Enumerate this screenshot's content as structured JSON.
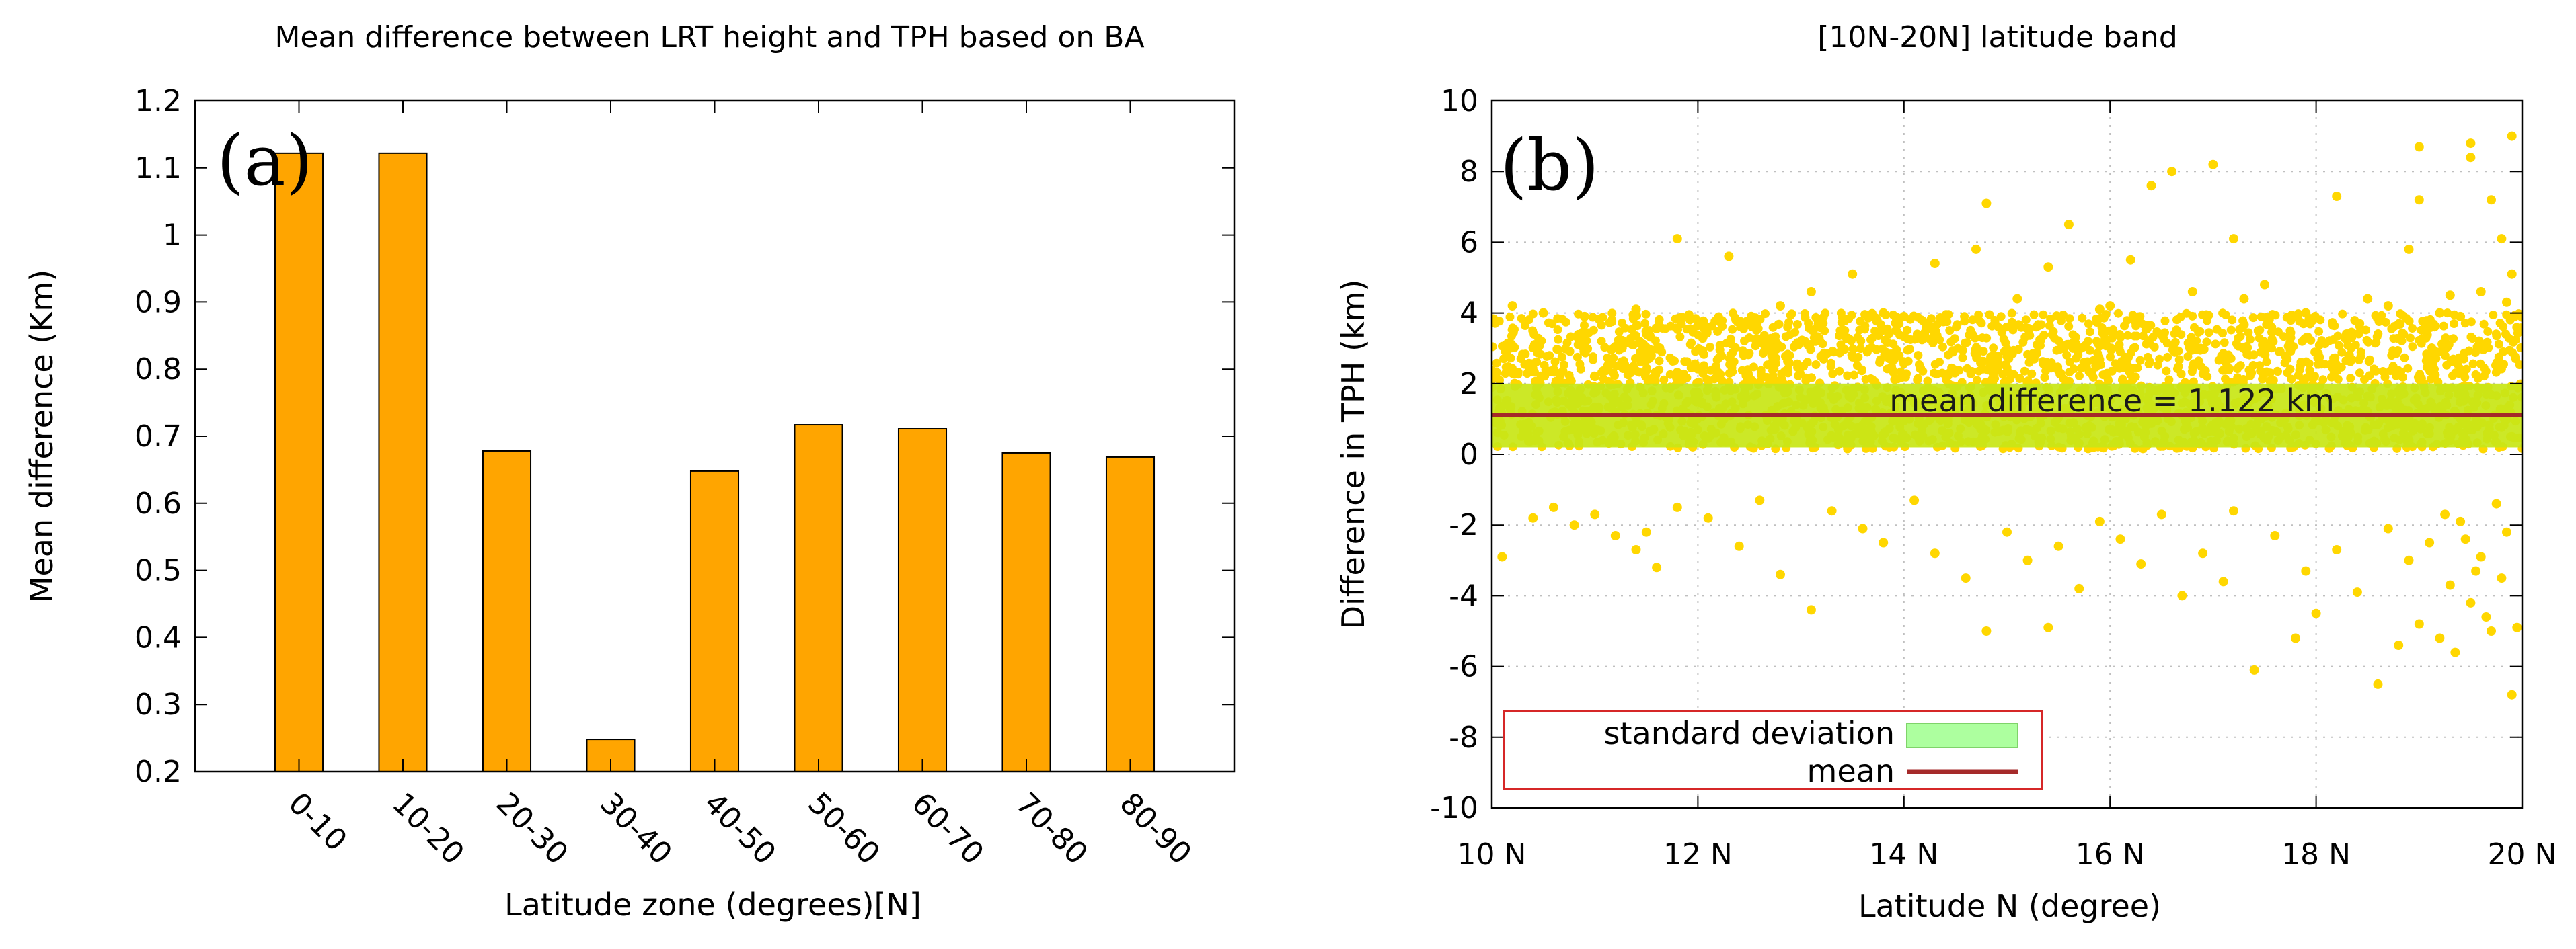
{
  "chart_data": [
    {
      "type": "bar",
      "panel_label": "(a)",
      "title": "Mean difference between LRT height and TPH based on BA",
      "xlabel": "Latitude zone (degrees)[N]",
      "ylabel": "Mean difference (Km)",
      "categories": [
        "0-10",
        "10-20",
        "20-30",
        "30-40",
        "40-50",
        "50-60",
        "60-70",
        "70-80",
        "80-90"
      ],
      "values": [
        1.122,
        1.122,
        0.678,
        0.248,
        0.648,
        0.717,
        0.711,
        0.675,
        0.669
      ],
      "ylim": [
        0.2,
        1.2
      ],
      "yticks": [
        "0.2",
        "0.3",
        "0.4",
        "0.5",
        "0.6",
        "0.7",
        "0.8",
        "0.9",
        "1",
        "1.1",
        "1.2"
      ],
      "grid": false,
      "bar_color": "#ffa500"
    },
    {
      "type": "scatter",
      "panel_label": "(b)",
      "title": "[10N-20N] latitude band",
      "xlabel": "Latitude N (degree)",
      "ylabel": "Difference in TPH (km)",
      "xlim": [
        10,
        20
      ],
      "ylim": [
        -10,
        10
      ],
      "xticks": [
        "10 N",
        "12 N",
        "14 N",
        "16 N",
        "18 N",
        "20 N"
      ],
      "yticks": [
        "-10",
        "-8",
        "-6",
        "-4",
        "-2",
        "0",
        "2",
        "4",
        "6",
        "8",
        "10"
      ],
      "grid": true,
      "mean": 1.122,
      "std_band": [
        0.2,
        2.0
      ],
      "annotation": "mean difference = 1.122 km",
      "legend": {
        "placement": "bottom-left",
        "entries": [
          {
            "label": "standard deviation",
            "color": "#adff9f"
          },
          {
            "label": "mean",
            "color": "#a52a2a"
          }
        ]
      },
      "point_color": "#ffd700",
      "band_color": "#c8e617",
      "outliers": [
        [
          10.1,
          -2.9
        ],
        [
          10.4,
          -1.8
        ],
        [
          10.6,
          -1.5
        ],
        [
          10.8,
          -2.0
        ],
        [
          11.0,
          -1.7
        ],
        [
          11.2,
          -2.3
        ],
        [
          11.4,
          -2.7
        ],
        [
          11.5,
          -2.2
        ],
        [
          11.6,
          -3.2
        ],
        [
          11.8,
          -1.5
        ],
        [
          12.1,
          -1.8
        ],
        [
          12.4,
          -2.6
        ],
        [
          12.6,
          -1.3
        ],
        [
          12.8,
          -3.4
        ],
        [
          13.1,
          -4.4
        ],
        [
          13.3,
          -1.6
        ],
        [
          13.6,
          -2.1
        ],
        [
          13.8,
          -2.5
        ],
        [
          14.1,
          -1.3
        ],
        [
          14.3,
          -2.8
        ],
        [
          14.6,
          -3.5
        ],
        [
          14.8,
          -5.0
        ],
        [
          15.0,
          -2.2
        ],
        [
          15.2,
          -3.0
        ],
        [
          15.4,
          -4.9
        ],
        [
          15.5,
          -2.6
        ],
        [
          15.7,
          -3.8
        ],
        [
          15.9,
          -1.9
        ],
        [
          16.1,
          -2.4
        ],
        [
          16.3,
          -3.1
        ],
        [
          16.5,
          -1.7
        ],
        [
          16.7,
          -4.0
        ],
        [
          16.9,
          -2.8
        ],
        [
          17.1,
          -3.6
        ],
        [
          17.2,
          -1.6
        ],
        [
          17.4,
          -6.1
        ],
        [
          17.6,
          -2.3
        ],
        [
          17.8,
          -5.2
        ],
        [
          17.9,
          -3.3
        ],
        [
          18.0,
          -4.5
        ],
        [
          18.2,
          -2.7
        ],
        [
          18.4,
          -3.9
        ],
        [
          18.6,
          -6.5
        ],
        [
          18.7,
          -2.1
        ],
        [
          18.8,
          -5.4
        ],
        [
          18.9,
          -3.0
        ],
        [
          19.0,
          -4.8
        ],
        [
          19.1,
          -2.5
        ],
        [
          19.2,
          -5.2
        ],
        [
          19.3,
          -3.7
        ],
        [
          19.4,
          -1.9
        ],
        [
          19.5,
          -4.2
        ],
        [
          19.6,
          -2.9
        ],
        [
          19.7,
          -5.0
        ],
        [
          19.8,
          -3.5
        ],
        [
          19.9,
          -6.8
        ],
        [
          19.95,
          -4.9
        ],
        [
          19.85,
          -2.2
        ],
        [
          19.75,
          -1.4
        ],
        [
          19.65,
          -4.6
        ],
        [
          19.55,
          -3.3
        ],
        [
          19.45,
          -2.4
        ],
        [
          19.35,
          -5.6
        ],
        [
          19.25,
          -1.7
        ],
        [
          10.2,
          4.2
        ],
        [
          10.5,
          4.0
        ],
        [
          10.9,
          3.9
        ],
        [
          11.4,
          4.1
        ],
        [
          11.8,
          6.1
        ],
        [
          12.3,
          5.6
        ],
        [
          12.8,
          4.2
        ],
        [
          13.1,
          4.6
        ],
        [
          13.5,
          5.1
        ],
        [
          14.0,
          3.9
        ],
        [
          14.3,
          5.4
        ],
        [
          14.7,
          5.8
        ],
        [
          14.8,
          7.1
        ],
        [
          15.1,
          4.4
        ],
        [
          15.4,
          5.3
        ],
        [
          15.6,
          6.5
        ],
        [
          15.9,
          4.1
        ],
        [
          16.2,
          5.5
        ],
        [
          16.4,
          7.6
        ],
        [
          16.6,
          8.0
        ],
        [
          16.8,
          4.6
        ],
        [
          17.0,
          8.2
        ],
        [
          17.2,
          6.1
        ],
        [
          17.5,
          4.8
        ],
        [
          17.8,
          3.9
        ],
        [
          18.2,
          7.3
        ],
        [
          18.5,
          4.4
        ],
        [
          18.9,
          5.8
        ],
        [
          19.0,
          8.7
        ],
        [
          19.0,
          7.2
        ],
        [
          19.3,
          4.5
        ],
        [
          19.5,
          8.8
        ],
        [
          19.5,
          8.4
        ],
        [
          19.7,
          7.2
        ],
        [
          19.8,
          6.1
        ],
        [
          19.9,
          9.0
        ],
        [
          19.9,
          5.1
        ],
        [
          19.85,
          4.3
        ],
        [
          19.6,
          4.6
        ],
        [
          19.4,
          3.9
        ],
        [
          19.2,
          4.0
        ],
        [
          18.7,
          4.2
        ],
        [
          17.9,
          4.0
        ],
        [
          17.3,
          4.4
        ],
        [
          16.0,
          4.2
        ],
        [
          13.8,
          4.0
        ]
      ]
    }
  ]
}
